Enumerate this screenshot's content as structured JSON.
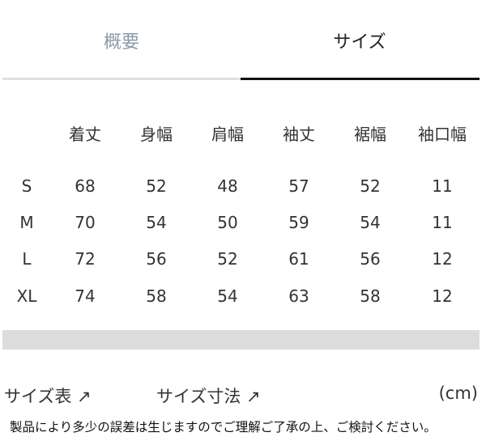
{
  "tabs": [
    {
      "label": "概要",
      "active": false
    },
    {
      "label": "サイズ",
      "active": true
    }
  ],
  "table": {
    "headers": [
      "",
      "着丈",
      "身幅",
      "肩幅",
      "袖丈",
      "裾幅",
      "袖口幅"
    ],
    "rows": [
      [
        "S",
        "68",
        "52",
        "48",
        "57",
        "52",
        "11"
      ],
      [
        "M",
        "70",
        "54",
        "50",
        "59",
        "54",
        "11"
      ],
      [
        "L",
        "72",
        "56",
        "52",
        "61",
        "56",
        "12"
      ],
      [
        "XL",
        "74",
        "58",
        "54",
        "63",
        "58",
        "12"
      ]
    ]
  },
  "links": [
    {
      "label": "サイズ表 ↗"
    },
    {
      "label": "サイズ寸法 ↗"
    }
  ],
  "unit": "(cm)",
  "note": "製品により多少の誤差は生じますのでご理解ご了承の上、ご検討ください。",
  "colors": {
    "active_underline": "#111111",
    "inactive_underline": "#e0e0e0",
    "inactive_tab": "#8a9ca8"
  }
}
